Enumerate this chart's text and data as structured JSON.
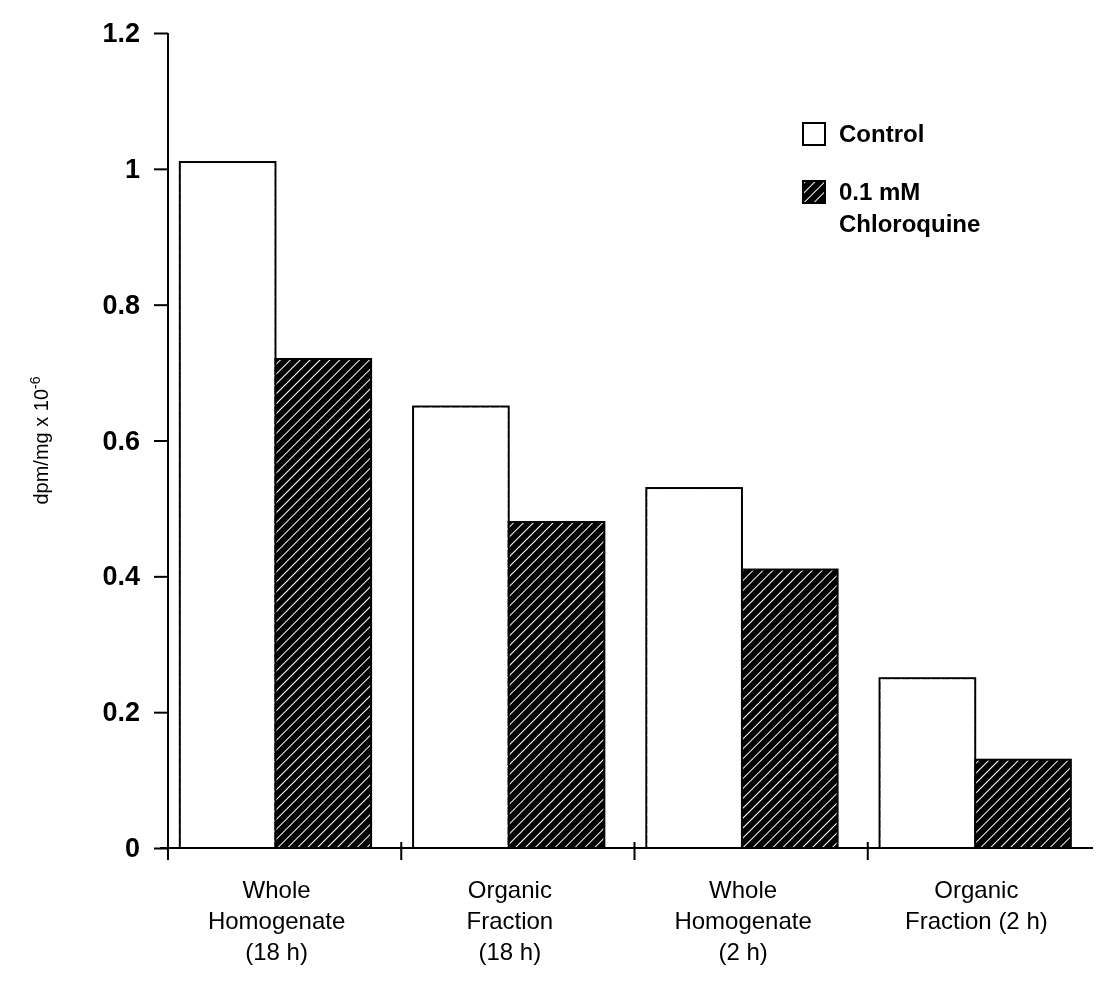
{
  "chart_data": {
    "type": "bar",
    "ylabel": "dpm/mg x 10$^{-6}$",
    "categories": [
      "Whole\nHomogenate\n(18 h)",
      "Organic\nFraction\n(18 h)",
      "Whole\nHomogenate\n(2 h)",
      "Organic\nFraction (2 h)"
    ],
    "series": [
      {
        "name": "Control",
        "color": "#ffffff",
        "values": [
          1.01,
          0.65,
          0.53,
          0.25
        ]
      },
      {
        "name": "0.1 mM\nChloroquine",
        "color": "#000000",
        "values": [
          0.72,
          0.48,
          0.41,
          0.13
        ]
      }
    ],
    "ylim": [
      0,
      1.2
    ],
    "yticks": [
      0,
      0.2,
      0.4,
      0.6,
      0.8,
      1,
      1.2
    ],
    "legend": "top right"
  }
}
